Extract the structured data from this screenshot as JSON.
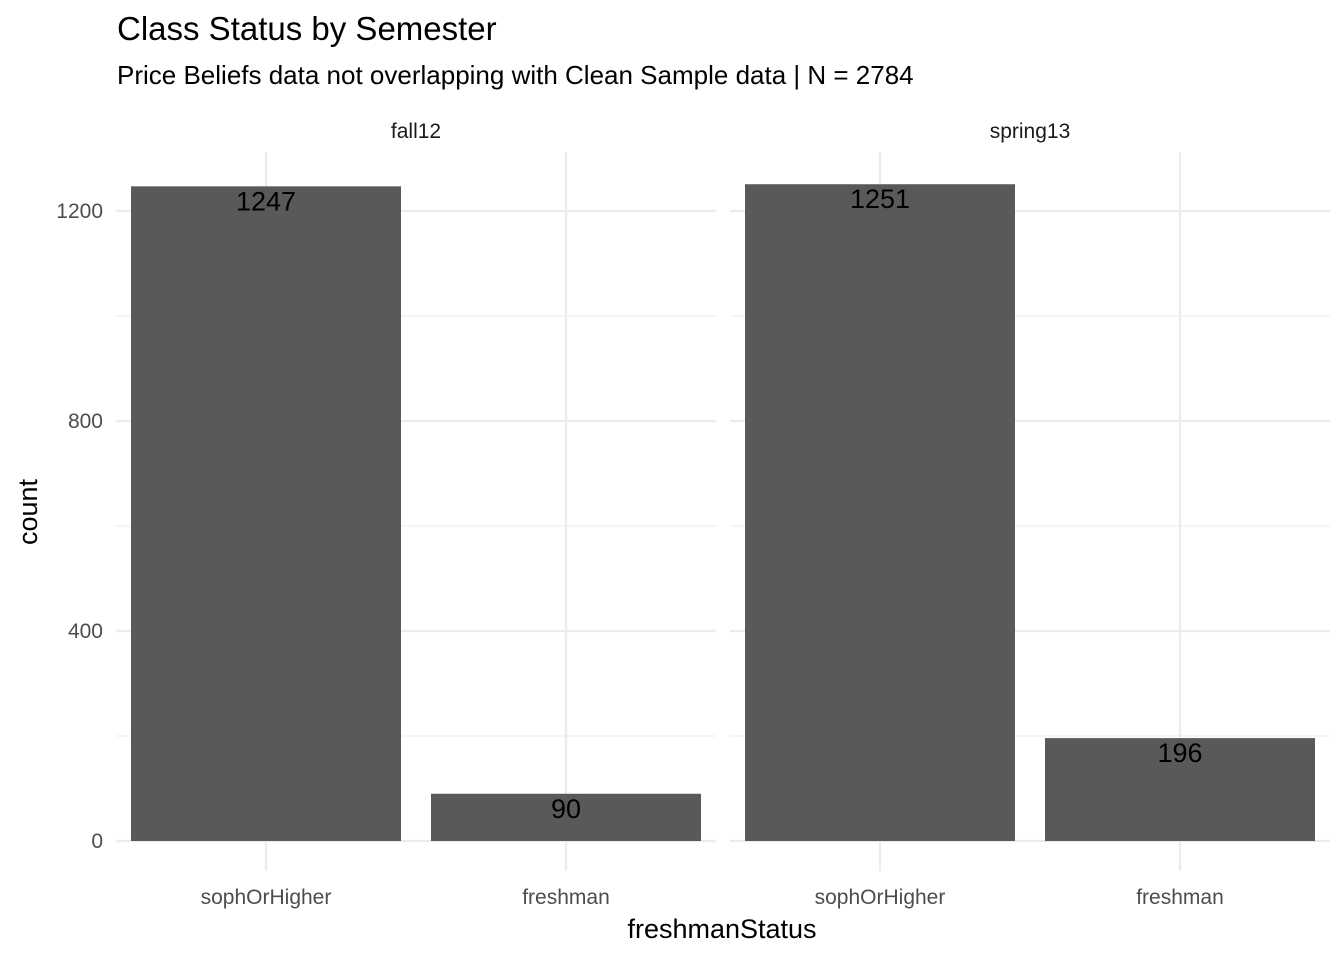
{
  "chart_data": {
    "type": "bar",
    "title": "Class Status by Semester",
    "subtitle": "Price Beliefs data not overlapping with Clean Sample data | N = 2784",
    "xlabel": "freshmanStatus",
    "ylabel": "count",
    "categories": [
      "sophOrHigher",
      "freshman"
    ],
    "ylim": [
      0,
      1300
    ],
    "yticks": [
      0,
      400,
      800,
      1200
    ],
    "yticks_minor": [
      200,
      600,
      1000
    ],
    "grid": true,
    "bar_color": "#595959",
    "grid_color": "#ebebeb",
    "facets": [
      {
        "name": "fall12",
        "values": [
          1247,
          90
        ]
      },
      {
        "name": "spring13",
        "values": [
          1251,
          196
        ]
      }
    ]
  }
}
